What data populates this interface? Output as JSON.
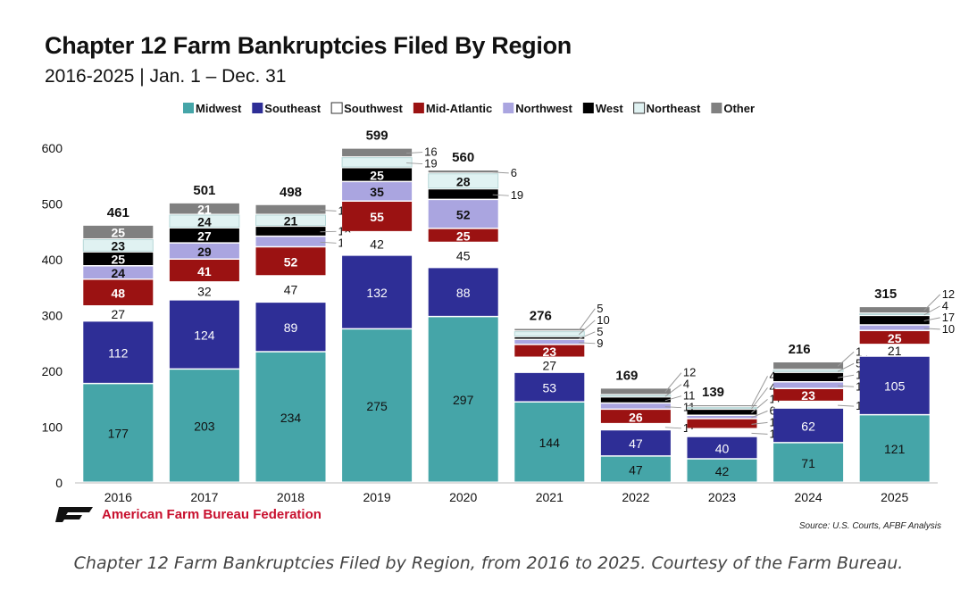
{
  "chart_data": {
    "type": "bar",
    "stacked": true,
    "title": "Chapter 12 Farm Bankruptcies Filed By Region",
    "subtitle": "2016-2025 | Jan. 1 – Dec. 31",
    "categories": [
      "2016",
      "2017",
      "2018",
      "2019",
      "2020",
      "2021",
      "2022",
      "2023",
      "2024",
      "2025"
    ],
    "totals": [
      461,
      501,
      498,
      599,
      560,
      276,
      169,
      139,
      216,
      315
    ],
    "ylim": [
      0,
      600
    ],
    "yticks": [
      0,
      100,
      200,
      300,
      400,
      500,
      600
    ],
    "legend_position": "top",
    "grid": false,
    "series": [
      {
        "name": "Midwest",
        "color": "#45a5a8",
        "values": [
          177,
          203,
          234,
          275,
          297,
          144,
          47,
          42,
          71,
          121
        ]
      },
      {
        "name": "Southeast",
        "color": "#2e2e96",
        "values": [
          112,
          124,
          89,
          132,
          88,
          53,
          47,
          40,
          62,
          105
        ]
      },
      {
        "name": "Southwest",
        "color": "#ffffff",
        "values": [
          27,
          32,
          47,
          42,
          45,
          27,
          11,
          14,
          12,
          21
        ]
      },
      {
        "name": "Mid-Atlantic",
        "color": "#9b1212",
        "values": [
          48,
          41,
          52,
          55,
          25,
          23,
          26,
          18,
          23,
          25
        ]
      },
      {
        "name": "Northwest",
        "color": "#aaa5e0",
        "values": [
          24,
          29,
          19,
          35,
          52,
          9,
          11,
          6,
          12,
          10
        ]
      },
      {
        "name": "West",
        "color": "#000000",
        "values": [
          25,
          27,
          18,
          25,
          19,
          5,
          11,
          11,
          17,
          17
        ]
      },
      {
        "name": "Northeast",
        "color": "#e0f2f2",
        "values": [
          23,
          24,
          21,
          19,
          28,
          10,
          4,
          4,
          5,
          4
        ]
      },
      {
        "name": "Other",
        "color": "#808080",
        "values": [
          25,
          21,
          18,
          16,
          6,
          5,
          12,
          4,
          14,
          12
        ]
      }
    ]
  },
  "branding": {
    "org": "American Farm Bureau Federation",
    "logo": "AFB"
  },
  "source": "Source: U.S. Courts, AFBF Analysis",
  "caption": "Chapter 12 Farm Bankruptcies Filed by Region, from 2016 to 2025. Courtesy of the Farm Bureau."
}
